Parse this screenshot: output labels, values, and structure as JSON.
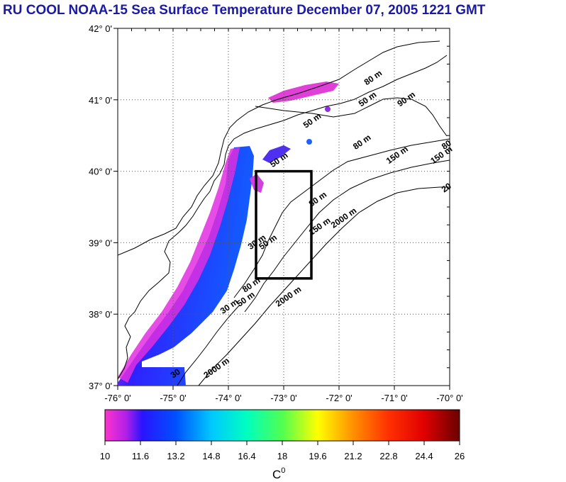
{
  "title": "RU COOL  NOAA-15 Sea Surface Temperature December 07, 2005 1221 GMT",
  "chart_data": {
    "type": "heatmap",
    "title": "RU COOL  NOAA-15 Sea Surface Temperature December 07, 2005 1221 GMT",
    "xlim": [
      -76,
      -70
    ],
    "ylim": [
      37,
      42
    ],
    "x_ticks": [
      -76,
      -75,
      -74,
      -73,
      -72,
      -71,
      -70
    ],
    "x_tick_labels": [
      "-76° 0'",
      "-75° 0'",
      "-74° 0'",
      "-73° 0'",
      "-72° 0'",
      "-71° 0'",
      "-70° 0'"
    ],
    "y_ticks": [
      37,
      38,
      39,
      40,
      41,
      42
    ],
    "y_tick_labels": [
      "37° 0'",
      "38° 0'",
      "39° 0'",
      "40° 0'",
      "41° 0'",
      "42° 0'"
    ],
    "grid": true,
    "box": {
      "lon_min": -73.5,
      "lon_max": -72.5,
      "lat_min": 38.5,
      "lat_max": 40.0
    },
    "contour_labels": [
      {
        "text": "50 m",
        "lon": -71.6,
        "lat": 40.9
      },
      {
        "text": "50 m",
        "lon": -72.6,
        "lat": 40.6
      },
      {
        "text": "50 m",
        "lon": -73.2,
        "lat": 40.05
      },
      {
        "text": "80 m",
        "lon": -71.5,
        "lat": 41.2
      },
      {
        "text": "80 m",
        "lon": -72.5,
        "lat": 39.5
      },
      {
        "text": "90 m",
        "lon": -70.9,
        "lat": 40.9
      },
      {
        "text": "80 m",
        "lon": -71.7,
        "lat": 40.3
      },
      {
        "text": "80",
        "lon": -70.1,
        "lat": 40.3
      },
      {
        "text": "150 m",
        "lon": -71.1,
        "lat": 40.1
      },
      {
        "text": "150 m",
        "lon": -70.3,
        "lat": 40.1
      },
      {
        "text": "150 m",
        "lon": -72.5,
        "lat": 39.1
      },
      {
        "text": "20",
        "lon": -70.1,
        "lat": 39.7
      },
      {
        "text": "2000 m",
        "lon": -72.1,
        "lat": 39.2
      },
      {
        "text": "30 m",
        "lon": -73.6,
        "lat": 38.9
      },
      {
        "text": "50 m",
        "lon": -73.4,
        "lat": 38.9
      },
      {
        "text": "80 m",
        "lon": -73.7,
        "lat": 38.3
      },
      {
        "text": "50 m",
        "lon": -73.8,
        "lat": 38.1
      },
      {
        "text": "30 m",
        "lon": -74.1,
        "lat": 38.0
      },
      {
        "text": "2000 m",
        "lon": -73.1,
        "lat": 38.1
      },
      {
        "text": "2000 m",
        "lon": -74.4,
        "lat": 37.1
      },
      {
        "text": "30",
        "lon": -75.0,
        "lat": 37.1
      }
    ],
    "colorbar": {
      "min": 10,
      "max": 26,
      "tick_labels": [
        "10",
        "11.6",
        "13.2",
        "14.8",
        "16.4",
        "18",
        "19.6",
        "21.2",
        "22.8",
        "24.4",
        "26"
      ],
      "label": "C",
      "label_superscript": "0"
    }
  }
}
